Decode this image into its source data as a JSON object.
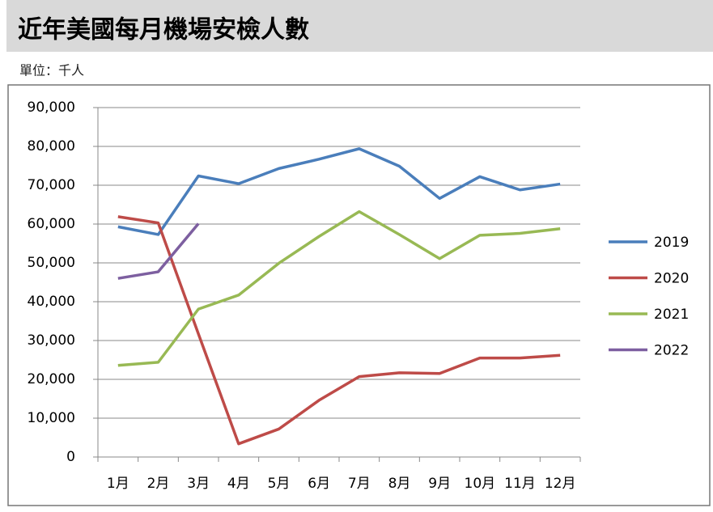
{
  "chart_data": {
    "type": "line",
    "title": "近年美國每月機場安檢人數",
    "subtitle": "單位：千人",
    "categories": [
      "1月",
      "2月",
      "3月",
      "4月",
      "5月",
      "6月",
      "7月",
      "8月",
      "9月",
      "10月",
      "11月",
      "12月"
    ],
    "series": [
      {
        "name": "2019",
        "color": "#4a7ebb",
        "values": [
          59300,
          57300,
          72400,
          70400,
          74300,
          76700,
          79400,
          74900,
          66600,
          72200,
          68800,
          70300
        ]
      },
      {
        "name": "2020",
        "color": "#be4b48",
        "values": [
          61900,
          60300,
          31700,
          3400,
          7200,
          14600,
          20700,
          21700,
          21500,
          25500,
          25500,
          26200
        ]
      },
      {
        "name": "2021",
        "color": "#98b954",
        "values": [
          23600,
          24400,
          38100,
          41700,
          49900,
          56800,
          63200,
          57300,
          51100,
          57100,
          57600,
          58800
        ]
      },
      {
        "name": "2022",
        "color": "#7d5fa0",
        "values": [
          46000,
          47700,
          60100,
          null,
          null,
          null,
          null,
          null,
          null,
          null,
          null,
          null
        ]
      }
    ],
    "ylim": [
      0,
      90000
    ],
    "yticks": [
      0,
      {
        "value": 10000,
        "label": "10,000"
      },
      {
        "value": 20000,
        "label": "20,000"
      },
      {
        "value": 30000,
        "label": "30,000"
      },
      {
        "value": 40000,
        "label": "40,000"
      },
      {
        "value": 50000,
        "label": "50,000"
      },
      {
        "value": 60000,
        "label": "60,000"
      },
      {
        "value": 70000,
        "label": "70,000"
      },
      {
        "value": 80000,
        "label": "80,000"
      },
      {
        "value": 90000,
        "label": "90,000"
      }
    ],
    "grid": true,
    "legend": "right"
  }
}
